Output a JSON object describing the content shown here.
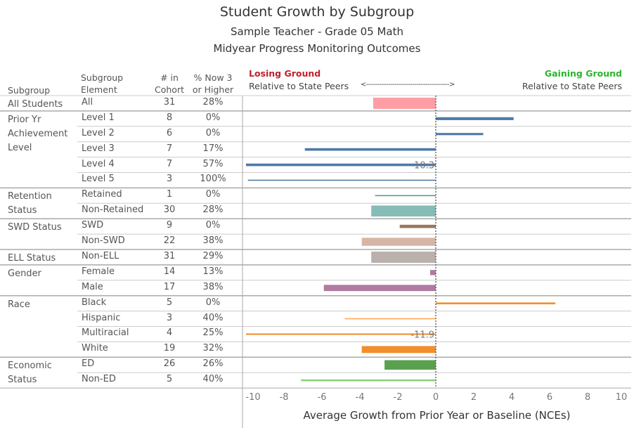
{
  "title": "Student Growth by Subgroup",
  "subtitle1": "Sample Teacher - Grade 05 Math",
  "subtitle2": "Midyear Progress Monitoring Outcomes",
  "columns": {
    "subgroup": "Subgroup",
    "element": "Subgroup Element",
    "element_l1": "Subgroup",
    "element_l2": "Element",
    "cohort_l1": "# in",
    "cohort_l2": "Cohort",
    "pct_l1": "% Now 3",
    "pct_l2": "or Higher"
  },
  "legend": {
    "losing": "Losing Ground",
    "gaining": "Gaining Ground",
    "relative": "Relative to State Peers",
    "arrow": "<-------------------------------------->",
    "losing_color": "#c0202a",
    "gaining_color": "#2db52d"
  },
  "groups": [
    {
      "label": "All Students",
      "start": 0
    },
    {
      "label": "Prior Yr Achievement Level",
      "start": 1
    },
    {
      "label": "Retention Status",
      "start": 6
    },
    {
      "label": "SWD Status",
      "start": 8
    },
    {
      "label": "ELL Status",
      "start": 10
    },
    {
      "label": "Gender",
      "start": 11
    },
    {
      "label": "Race",
      "start": 13
    },
    {
      "label": "Economic Status",
      "start": 17
    }
  ],
  "chart_data": {
    "type": "bar",
    "orientation": "horizontal",
    "xlabel": "Average Growth from Prior Year or Baseline (NCEs)",
    "xlim": [
      -10,
      10
    ],
    "xticks": [
      "-10",
      "-8",
      "-6",
      "-4",
      "-2",
      "0",
      "2",
      "4",
      "6",
      "8",
      "10"
    ],
    "reference_line": 0,
    "bar_thickness_encodes": "cohort size",
    "rows": [
      {
        "element": "All",
        "cohort": 31,
        "pct": "28%",
        "value": -3.3,
        "color": "#ff9da7"
      },
      {
        "element": "Level 1",
        "cohort": 8,
        "pct": "0%",
        "value": 4.1,
        "color": "#4e79a7"
      },
      {
        "element": "Level 2",
        "cohort": 6,
        "pct": "0%",
        "value": 2.5,
        "color": "#4e79a7"
      },
      {
        "element": "Level 3",
        "cohort": 7,
        "pct": "17%",
        "value": -6.9,
        "color": "#4e79a7"
      },
      {
        "element": "Level 4",
        "cohort": 7,
        "pct": "57%",
        "value": -10.3,
        "label": "-10.3",
        "color": "#4e79a7"
      },
      {
        "element": "Level 5",
        "cohort": 3,
        "pct": "100%",
        "value": -9.9,
        "color": "#4e79a7"
      },
      {
        "element": "Retained",
        "cohort": 1,
        "pct": "0%",
        "value": -3.2,
        "color": "#499894"
      },
      {
        "element": "Non-Retained",
        "cohort": 30,
        "pct": "28%",
        "value": -3.4,
        "color": "#86bcb6"
      },
      {
        "element": "SWD",
        "cohort": 9,
        "pct": "0%",
        "value": -1.9,
        "color": "#9d7660"
      },
      {
        "element": "Non-SWD",
        "cohort": 22,
        "pct": "38%",
        "value": -3.9,
        "color": "#d7b5a6"
      },
      {
        "element": "Non-ELL",
        "cohort": 31,
        "pct": "29%",
        "value": -3.4,
        "color": "#bab0ac"
      },
      {
        "element": "Female",
        "cohort": 14,
        "pct": "13%",
        "value": -0.3,
        "color": "#b07aa1"
      },
      {
        "element": "Male",
        "cohort": 17,
        "pct": "38%",
        "value": -5.9,
        "color": "#b07aa1"
      },
      {
        "element": "Black",
        "cohort": 5,
        "pct": "0%",
        "value": 6.3,
        "color": "#f28e2b"
      },
      {
        "element": "Hispanic",
        "cohort": 3,
        "pct": "40%",
        "value": -4.8,
        "color": "#ffa94d"
      },
      {
        "element": "Multiracial",
        "cohort": 4,
        "pct": "25%",
        "value": -11.9,
        "label": "-11.9",
        "color": "#f28e2b"
      },
      {
        "element": "White",
        "cohort": 19,
        "pct": "32%",
        "value": -3.9,
        "color": "#f28e2b"
      },
      {
        "element": "ED",
        "cohort": 26,
        "pct": "26%",
        "value": -2.7,
        "color": "#59a14f"
      },
      {
        "element": "Non-ED",
        "cohort": 5,
        "pct": "40%",
        "value": -7.1,
        "color": "#8cd17d"
      }
    ]
  }
}
